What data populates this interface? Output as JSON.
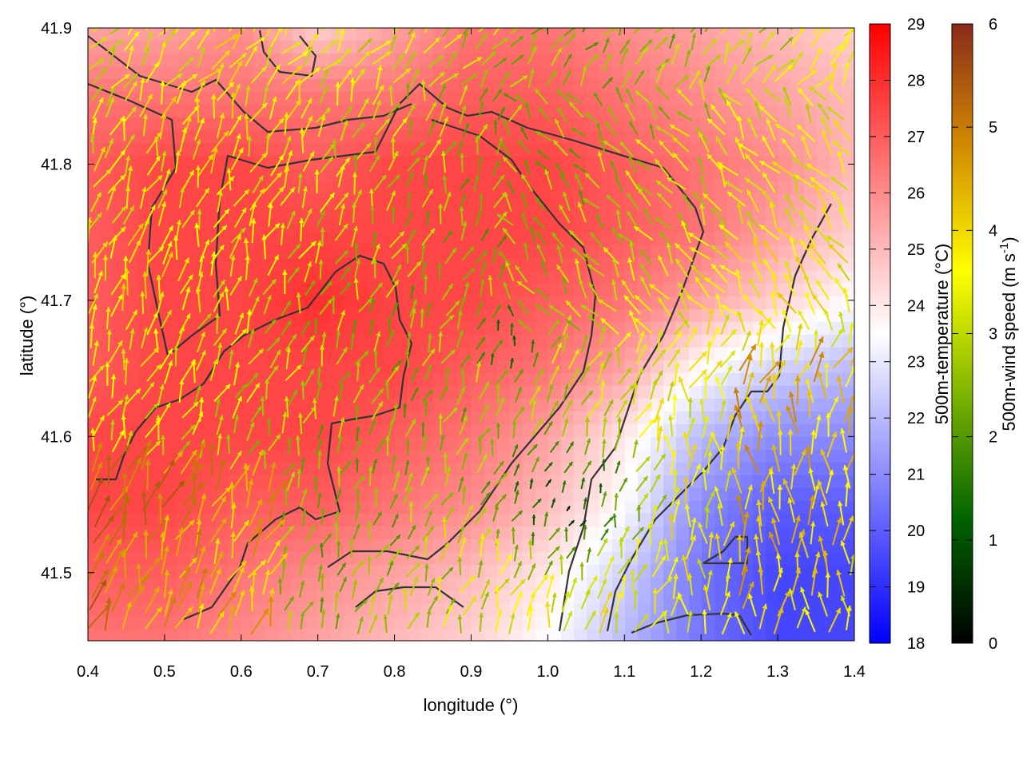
{
  "chart_data": {
    "type": "heatmap",
    "overlay": "wind-vector-field",
    "xlabel": "longitude (°)",
    "ylabel": "latitude (°)",
    "xlim": [
      0.4,
      1.4
    ],
    "ylim": [
      41.45,
      41.9
    ],
    "xticks": [
      "0.4",
      "0.5",
      "0.6",
      "0.7",
      "0.8",
      "0.9",
      "1.0",
      "1.1",
      "1.2",
      "1.3",
      "1.4"
    ],
    "yticks": [
      "41.5",
      "41.6",
      "41.7",
      "41.8",
      "41.9"
    ],
    "grid": false,
    "temperature_colorbar": {
      "label": "500m-temperature (°C)",
      "range": [
        18,
        29
      ],
      "ticks": [
        "18",
        "19",
        "20",
        "21",
        "22",
        "23",
        "24",
        "25",
        "26",
        "27",
        "28",
        "29"
      ],
      "colors": [
        "#0000ff",
        "#ffffff",
        "#ff0000"
      ]
    },
    "wind_colorbar": {
      "label_main": "500m-wind speed (m s",
      "label_sup": "-1",
      "label_end": ")",
      "range": [
        0,
        6
      ],
      "ticks": [
        "0",
        "1",
        "2",
        "3",
        "4",
        "5",
        "6"
      ],
      "colors": [
        "#000000",
        "#006400",
        "#7cb300",
        "#ffff00",
        "#d28c00",
        "#8b2a1a"
      ]
    },
    "temperature_field": {
      "lon": [
        0.4,
        0.5,
        0.6,
        0.7,
        0.8,
        0.9,
        1.0,
        1.1,
        1.2,
        1.3,
        1.4
      ],
      "lat": [
        41.9,
        41.85,
        41.8,
        41.75,
        41.7,
        41.65,
        41.6,
        41.55,
        41.5,
        41.45
      ],
      "values": [
        [
          25.5,
          25.5,
          26.0,
          24.5,
          25.5,
          26.5,
          26.5,
          26.0,
          25.5,
          25.0,
          24.5
        ],
        [
          26.5,
          26.5,
          26.5,
          26.5,
          26.5,
          27.0,
          27.0,
          26.5,
          26.0,
          25.5,
          25.0
        ],
        [
          27.0,
          27.5,
          27.5,
          27.0,
          27.5,
          27.5,
          27.5,
          27.0,
          26.5,
          26.0,
          25.0
        ],
        [
          27.0,
          27.5,
          27.5,
          27.5,
          27.5,
          27.5,
          27.5,
          27.0,
          26.5,
          25.5,
          24.5
        ],
        [
          27.0,
          27.5,
          27.5,
          28.0,
          27.5,
          27.5,
          27.0,
          26.5,
          25.5,
          24.5,
          23.5
        ],
        [
          27.0,
          27.5,
          27.5,
          27.5,
          27.5,
          27.0,
          26.5,
          25.5,
          23.5,
          22.5,
          22.0
        ],
        [
          27.5,
          27.5,
          27.5,
          27.5,
          27.0,
          26.5,
          25.5,
          24.0,
          22.0,
          21.0,
          21.0
        ],
        [
          27.5,
          27.5,
          27.0,
          27.0,
          26.5,
          26.0,
          25.0,
          23.5,
          21.0,
          20.0,
          20.0
        ],
        [
          27.0,
          27.0,
          26.5,
          26.0,
          25.5,
          25.0,
          24.0,
          22.5,
          20.5,
          19.5,
          19.5
        ],
        [
          26.5,
          26.5,
          26.0,
          25.5,
          25.0,
          24.5,
          23.5,
          22.0,
          20.5,
          19.5,
          19.5
        ]
      ]
    }
  }
}
